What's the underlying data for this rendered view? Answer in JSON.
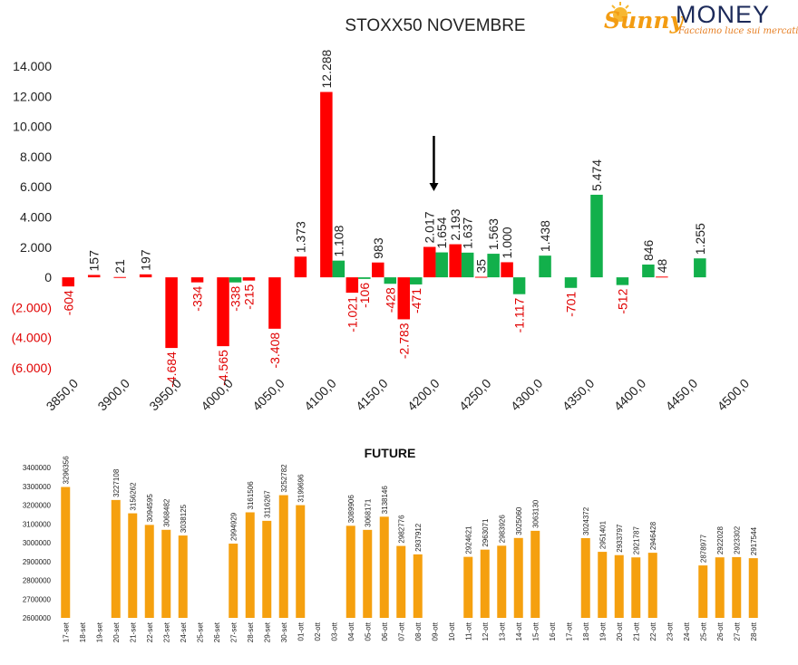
{
  "logo": {
    "brand_first": "Sunny",
    "brand_second": "MONEY",
    "tagline": "Facciamo luce sui mercati"
  },
  "colors": {
    "positive": "#12b04b",
    "negative": "#ff0000",
    "future_bar": "#f5a00f",
    "negative_label": "#e00000",
    "text": "#222222"
  },
  "chart_data": [
    {
      "type": "bar",
      "title": "STOXX50 NOVEMBRE",
      "legend": "none",
      "grid": false,
      "ylim": [
        -6000,
        14000
      ],
      "y_ticks": [
        14000,
        12000,
        10000,
        8000,
        6000,
        4000,
        2000,
        0,
        -2000,
        -4000,
        -6000
      ],
      "y_tick_labels": [
        "14.000",
        "12.000",
        "10.000",
        "8.000",
        "6.000",
        "4.000",
        "2.000",
        "0",
        "(2.000)",
        "(4.000)",
        "(6.000)"
      ],
      "xlim": [
        3850,
        4500
      ],
      "x_ticks": [
        3850,
        3900,
        3950,
        4000,
        4050,
        4100,
        4150,
        4200,
        4250,
        4300,
        4350,
        4400,
        4450,
        4500
      ],
      "x_tick_labels": [
        "3850,0",
        "3900,0",
        "3950,0",
        "4000,0",
        "4050,0",
        "4100,0",
        "4150,0",
        "4200,0",
        "4250,0",
        "4300,0",
        "4350,0",
        "4400,0",
        "4450,0",
        "4500,0"
      ],
      "marker": {
        "type": "arrow-down",
        "x": 4200
      },
      "series": [
        {
          "x": [
            3850,
            3875,
            3900,
            3925,
            3950,
            3975,
            4000,
            4025,
            4050,
            4075,
            4100,
            4125,
            4150,
            4175,
            4200,
            4225,
            4250,
            4275,
            4300,
            4325,
            4350,
            4375,
            4400,
            4425,
            4450
          ],
          "values": [
            -604,
            157,
            21,
            197,
            -4684,
            -334,
            -4565,
            -215,
            -3408,
            1373,
            12288,
            -1021,
            983,
            -2783,
            2017,
            2193,
            35,
            1000,
            0,
            0,
            0,
            0,
            0,
            48,
            0
          ],
          "labels": [
            "-604",
            "157",
            "21",
            "197",
            "-4.684",
            "-334",
            "-4.565",
            "-215",
            "-3.408",
            "1.373",
            "12.288",
            "-1.021",
            "983",
            "-2.783",
            "2.017",
            "2.193",
            "35",
            "1.000",
            "",
            "",
            "",
            "",
            "",
            "48",
            ""
          ]
        },
        {
          "x": [
            3850,
            3875,
            3900,
            3925,
            3950,
            3975,
            4000,
            4025,
            4050,
            4075,
            4100,
            4125,
            4150,
            4175,
            4200,
            4225,
            4250,
            4275,
            4300,
            4325,
            4350,
            4375,
            4400,
            4425,
            4450
          ],
          "values": [
            0,
            0,
            0,
            0,
            0,
            0,
            -338,
            0,
            0,
            0,
            1108,
            -106,
            -428,
            -471,
            1654,
            1637,
            1563,
            -1117,
            1438,
            -701,
            5474,
            -512,
            846,
            0,
            1255
          ],
          "labels": [
            "",
            "",
            "",
            "",
            "",
            "",
            "-338",
            "",
            "",
            "",
            "1.108",
            "-106",
            "-428",
            "-471",
            "1.654",
            "1.637",
            "1.563",
            "-1.117",
            "1.438",
            "-701",
            "5.474",
            "-512",
            "846",
            "",
            "1.255"
          ]
        }
      ]
    },
    {
      "type": "bar",
      "title": "FUTURE",
      "legend": "none",
      "grid": false,
      "ylim": [
        2600000,
        3400000
      ],
      "y_ticks": [
        2600000,
        2700000,
        2800000,
        2900000,
        3000000,
        3100000,
        3200000,
        3300000,
        3400000
      ],
      "y_tick_labels": [
        "2600000",
        "2700000",
        "2800000",
        "2900000",
        "3000000",
        "3100000",
        "3200000",
        "3300000",
        "3400000"
      ],
      "categories": [
        "17-set",
        "18-set",
        "19-set",
        "20-set",
        "21-set",
        "22-set",
        "23-set",
        "24-set",
        "25-set",
        "26-set",
        "27-set",
        "28-set",
        "29-set",
        "30-set",
        "01-ott",
        "02-ott",
        "03-ott",
        "04-ott",
        "05-ott",
        "06-ott",
        "07-ott",
        "08-ott",
        "09-ott",
        "10-ott",
        "11-ott",
        "12-ott",
        "13-ott",
        "14-ott",
        "15-ott",
        "16-ott",
        "17-ott",
        "18-ott",
        "19-ott",
        "20-ott",
        "21-ott",
        "22-ott",
        "23-ott",
        "24-ott",
        "25-ott",
        "26-ott",
        "27-ott",
        "28-ott"
      ],
      "values": [
        3296356,
        null,
        null,
        3227108,
        3156262,
        3094595,
        3068482,
        3038125,
        null,
        null,
        2994929,
        3161506,
        3116267,
        3252782,
        3199696,
        null,
        null,
        3089906,
        3068171,
        3138146,
        2982776,
        2937912,
        null,
        null,
        2924621,
        2963071,
        2983926,
        3025060,
        3063130,
        null,
        null,
        3024372,
        2951401,
        2933797,
        2921787,
        2946428,
        null,
        null,
        2878977,
        2922028,
        2923302,
        2917544
      ]
    }
  ]
}
